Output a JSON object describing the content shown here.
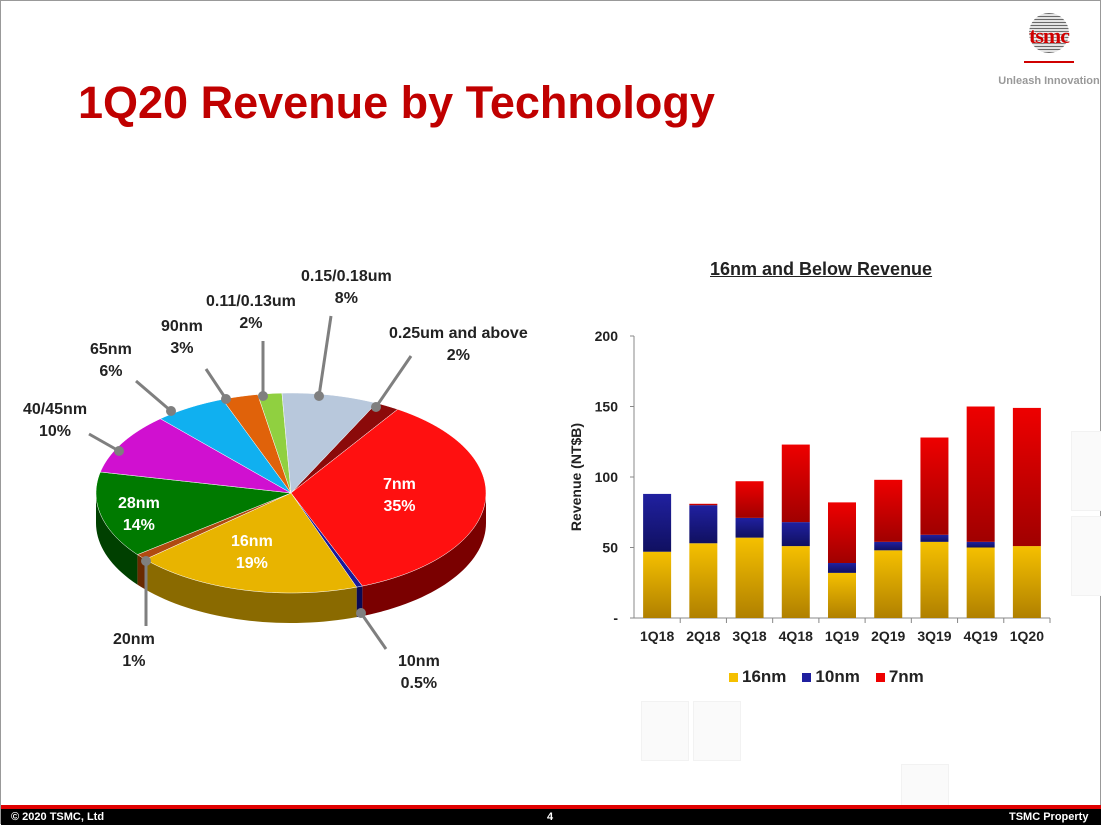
{
  "title": "1Q20 Revenue by Technology",
  "logo": {
    "text": "tsmc",
    "tagline": "Unleash Innovation"
  },
  "footer": {
    "copyright": "© 2020 TSMC, Ltd",
    "page": "4",
    "property": "TSMC Property"
  },
  "chart_data": [
    {
      "type": "pie",
      "title": "1Q20 Revenue by Technology",
      "slices": [
        {
          "name": "0.25um and above",
          "pct_label": "2%",
          "value": 2,
          "color": "#8b0a0a",
          "side": "#5a0000"
        },
        {
          "name": "7nm",
          "pct_label": "35%",
          "value": 35,
          "color": "#ff1010",
          "side": "#7a0000"
        },
        {
          "name": "10nm",
          "pct_label": "0.5%",
          "value": 0.5,
          "color": "#1a1a99",
          "side": "#0a0a55"
        },
        {
          "name": "16nm",
          "pct_label": "19%",
          "value": 19,
          "color": "#e8b400",
          "side": "#8a6a00"
        },
        {
          "name": "20nm",
          "pct_label": "1%",
          "value": 1,
          "color": "#b04a10",
          "side": "#6a2a00"
        },
        {
          "name": "28nm",
          "pct_label": "14%",
          "value": 14,
          "color": "#007a00",
          "side": "#004000"
        },
        {
          "name": "40/45nm",
          "pct_label": "10%",
          "value": 10,
          "color": "#d010d0",
          "side": "#700070"
        },
        {
          "name": "65nm",
          "pct_label": "6%",
          "value": 6,
          "color": "#10b0f0",
          "side": "#006090"
        },
        {
          "name": "90nm",
          "pct_label": "3%",
          "value": 3,
          "color": "#e0620a",
          "side": "#803000"
        },
        {
          "name": "0.11/0.13um",
          "pct_label": "2%",
          "value": 2,
          "color": "#90d040",
          "side": "#507020"
        },
        {
          "name": "0.15/0.18um",
          "pct_label": "8%",
          "value": 8,
          "color": "#b8c8dc",
          "side": "#708090"
        }
      ]
    },
    {
      "type": "bar",
      "stacked": true,
      "title": "16nm and Below Revenue",
      "xlabel": "",
      "ylabel": "Revenue (NT$B)",
      "ylim": [
        0,
        200
      ],
      "yticks": [
        "-",
        "50",
        "100",
        "150",
        "200"
      ],
      "categories": [
        "1Q18",
        "2Q18",
        "3Q18",
        "4Q18",
        "1Q19",
        "2Q19",
        "3Q19",
        "4Q19",
        "1Q20"
      ],
      "series": [
        {
          "name": "16nm",
          "color": "#f5c000",
          "values": [
            47,
            53,
            57,
            51,
            32,
            48,
            54,
            50,
            51
          ]
        },
        {
          "name": "10nm",
          "color": "#2020a0",
          "values": [
            41,
            27,
            14,
            17,
            7,
            6,
            5,
            4,
            0
          ]
        },
        {
          "name": "7nm",
          "color": "#ee0000",
          "values": [
            0,
            1,
            26,
            55,
            43,
            44,
            69,
            96,
            98
          ]
        }
      ],
      "legend": "bottom"
    }
  ]
}
